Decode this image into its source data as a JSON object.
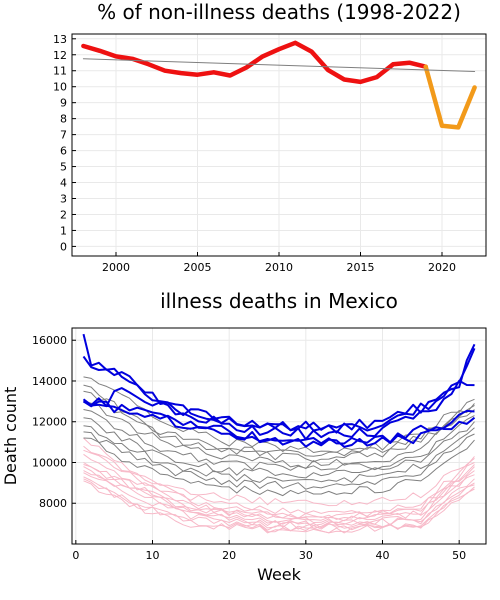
{
  "colors": {
    "pct_pre": "#ee1111",
    "pct_covid": "#f29a1a",
    "trend": "#7f7f7f",
    "blue": "#0000dd",
    "gray": "#808080",
    "pink": "#f7b9c8"
  },
  "chart_data": [
    {
      "type": "line",
      "title": "% of non-illness deaths (1998-2022)",
      "xlabel": "",
      "ylabel": "",
      "xlim": [
        1997.3,
        2022.7
      ],
      "ylim": [
        -0.6,
        13.3
      ],
      "x_ticks": [
        2000,
        2005,
        2010,
        2015,
        2020
      ],
      "y_ticks": [
        0,
        1,
        2,
        3,
        4,
        5,
        6,
        7,
        8,
        9,
        10,
        11,
        12,
        13
      ],
      "grid": true,
      "legend": "none",
      "series": [
        {
          "x": [
            1998,
            1999,
            2000,
            2001,
            2002,
            2003,
            2004,
            2005,
            2006,
            2007,
            2008,
            2009,
            2010,
            2011,
            2012,
            2013,
            2014,
            2015,
            2016,
            2017,
            2018,
            2019
          ],
          "y": [
            12.55,
            12.25,
            11.9,
            11.75,
            11.4,
            11.0,
            10.85,
            10.75,
            10.9,
            10.7,
            11.2,
            11.9,
            12.35,
            12.75,
            12.2,
            11.05,
            10.45,
            10.3,
            10.6,
            11.4,
            11.5,
            11.25
          ],
          "color": "pct_pre"
        },
        {
          "x": [
            2019,
            2020,
            2021,
            2022
          ],
          "y": [
            11.25,
            7.55,
            7.45,
            9.95
          ],
          "color": "pct_covid"
        },
        {
          "x": [
            1998,
            2022
          ],
          "y": [
            11.75,
            10.95
          ],
          "color": "trend"
        }
      ]
    },
    {
      "type": "line",
      "title": "illness deaths in Mexico",
      "xlabel": "Week",
      "ylabel": "Death count",
      "xlim": [
        -0.5,
        53.5
      ],
      "ylim": [
        6000,
        16600
      ],
      "x_ticks": [
        0,
        10,
        20,
        30,
        40,
        50
      ],
      "y_ticks": [
        8000,
        10000,
        12000,
        14000,
        16000
      ],
      "grid": true,
      "legend": "none",
      "series": [
        {
          "color": "pink",
          "anchors": [
            [
              1,
              11200
            ],
            [
              8,
              9400
            ],
            [
              15,
              8300
            ],
            [
              25,
              7700
            ],
            [
              35,
              7500
            ],
            [
              45,
              8000
            ],
            [
              52,
              10200
            ]
          ]
        },
        {
          "color": "pink",
          "anchors": [
            [
              1,
              10800
            ],
            [
              8,
              9200
            ],
            [
              15,
              8100
            ],
            [
              25,
              7500
            ],
            [
              35,
              7300
            ],
            [
              45,
              7800
            ],
            [
              52,
              10000
            ]
          ]
        },
        {
          "color": "pink",
          "anchors": [
            [
              1,
              10400
            ],
            [
              8,
              9000
            ],
            [
              15,
              7900
            ],
            [
              25,
              7300
            ],
            [
              35,
              7200
            ],
            [
              45,
              7700
            ],
            [
              52,
              9800
            ]
          ]
        },
        {
          "color": "pink",
          "anchors": [
            [
              1,
              10000
            ],
            [
              8,
              8800
            ],
            [
              15,
              7800
            ],
            [
              25,
              7200
            ],
            [
              35,
              7100
            ],
            [
              45,
              7500
            ],
            [
              52,
              9600
            ]
          ]
        },
        {
          "color": "pink",
          "anchors": [
            [
              1,
              9800
            ],
            [
              8,
              8600
            ],
            [
              15,
              7600
            ],
            [
              25,
              7100
            ],
            [
              35,
              7000
            ],
            [
              45,
              7300
            ],
            [
              52,
              9400
            ]
          ]
        },
        {
          "color": "pink",
          "anchors": [
            [
              1,
              9600
            ],
            [
              8,
              8400
            ],
            [
              15,
              7500
            ],
            [
              25,
              7000
            ],
            [
              35,
              6900
            ],
            [
              45,
              7200
            ],
            [
              52,
              9200
            ]
          ]
        },
        {
          "color": "pink",
          "anchors": [
            [
              1,
              9500
            ],
            [
              8,
              8200
            ],
            [
              15,
              7400
            ],
            [
              25,
              6900
            ],
            [
              35,
              6850
            ],
            [
              45,
              7100
            ],
            [
              52,
              9000
            ]
          ]
        },
        {
          "color": "pink",
          "anchors": [
            [
              1,
              9300
            ],
            [
              8,
              8000
            ],
            [
              15,
              7200
            ],
            [
              25,
              6800
            ],
            [
              35,
              6800
            ],
            [
              45,
              7000
            ],
            [
              52,
              8900
            ]
          ]
        },
        {
          "color": "pink",
          "anchors": [
            [
              1,
              9200
            ],
            [
              8,
              7900
            ],
            [
              15,
              7100
            ],
            [
              25,
              6750
            ],
            [
              35,
              6700
            ],
            [
              45,
              6950
            ],
            [
              52,
              8800
            ]
          ]
        },
        {
          "color": "pink",
          "anchors": [
            [
              1,
              9100
            ],
            [
              8,
              7800
            ],
            [
              15,
              7000
            ],
            [
              25,
              6700
            ],
            [
              35,
              6700
            ],
            [
              45,
              6900
            ],
            [
              52,
              8700
            ]
          ]
        },
        {
          "color": "pink",
          "anchors": [
            [
              1,
              10600
            ],
            [
              8,
              9300
            ],
            [
              15,
              8500
            ],
            [
              25,
              8100
            ],
            [
              35,
              8000
            ],
            [
              45,
              8400
            ],
            [
              52,
              10300
            ]
          ]
        },
        {
          "color": "pink",
          "anchors": [
            [
              1,
              9900
            ],
            [
              8,
              8700
            ],
            [
              15,
              7700
            ],
            [
              25,
              7400
            ],
            [
              35,
              7400
            ],
            [
              45,
              7600
            ],
            [
              52,
              9900
            ]
          ]
        },
        {
          "color": "gray",
          "anchors": [
            [
              1,
              14200
            ],
            [
              5,
              13600
            ],
            [
              12,
              11800
            ],
            [
              20,
              11000
            ],
            [
              30,
              10600
            ],
            [
              40,
              10800
            ],
            [
              46,
              11700
            ],
            [
              52,
              13100
            ]
          ]
        },
        {
          "color": "gray",
          "anchors": [
            [
              1,
              13500
            ],
            [
              5,
              12800
            ],
            [
              12,
              11200
            ],
            [
              20,
              10500
            ],
            [
              30,
              10200
            ],
            [
              40,
              10400
            ],
            [
              46,
              11300
            ],
            [
              52,
              12900
            ]
          ]
        },
        {
          "color": "gray",
          "anchors": [
            [
              1,
              13000
            ],
            [
              5,
              12200
            ],
            [
              12,
              10900
            ],
            [
              20,
              10200
            ],
            [
              30,
              9900
            ],
            [
              40,
              10100
            ],
            [
              46,
              11000
            ],
            [
              52,
              12600
            ]
          ]
        },
        {
          "color": "gray",
          "anchors": [
            [
              1,
              12600
            ],
            [
              5,
              11800
            ],
            [
              12,
              10500
            ],
            [
              20,
              9900
            ],
            [
              30,
              9700
            ],
            [
              40,
              9800
            ],
            [
              46,
              10600
            ],
            [
              52,
              12300
            ]
          ]
        },
        {
          "color": "gray",
          "anchors": [
            [
              1,
              12200
            ],
            [
              5,
              11400
            ],
            [
              12,
              10200
            ],
            [
              20,
              9600
            ],
            [
              30,
              9400
            ],
            [
              40,
              9600
            ],
            [
              46,
              10300
            ],
            [
              52,
              12000
            ]
          ]
        },
        {
          "color": "gray",
          "anchors": [
            [
              1,
              11800
            ],
            [
              5,
              11000
            ],
            [
              12,
              9900
            ],
            [
              20,
              9300
            ],
            [
              30,
              9100
            ],
            [
              40,
              9300
            ],
            [
              46,
              10000
            ],
            [
              52,
              11700
            ]
          ]
        },
        {
          "color": "gray",
          "anchors": [
            [
              1,
              11500
            ],
            [
              5,
              10700
            ],
            [
              12,
              9600
            ],
            [
              20,
              9000
            ],
            [
              30,
              8800
            ],
            [
              40,
              9000
            ],
            [
              46,
              9700
            ],
            [
              52,
              11400
            ]
          ]
        },
        {
          "color": "gray",
          "anchors": [
            [
              1,
              11200
            ],
            [
              5,
              10400
            ],
            [
              12,
              9300
            ],
            [
              20,
              8700
            ],
            [
              30,
              8500
            ],
            [
              40,
              8700
            ],
            [
              46,
              9400
            ],
            [
              52,
              11100
            ]
          ]
        },
        {
          "color": "gray",
          "anchors": [
            [
              1,
              13800
            ],
            [
              5,
              12600
            ],
            [
              12,
              11400
            ],
            [
              20,
              10600
            ],
            [
              30,
              10400
            ],
            [
              40,
              10600
            ],
            [
              46,
              11500
            ],
            [
              52,
              12800
            ]
          ]
        },
        {
          "color": "blue",
          "anchors": [
            [
              1,
              16300
            ],
            [
              2,
              15000
            ],
            [
              4,
              14700
            ],
            [
              6,
              14300
            ],
            [
              10,
              13100
            ],
            [
              15,
              12400
            ],
            [
              25,
              11900
            ],
            [
              35,
              11700
            ],
            [
              40,
              12100
            ],
            [
              45,
              12700
            ],
            [
              50,
              13900
            ],
            [
              52,
              15800
            ]
          ]
        },
        {
          "color": "blue",
          "anchors": [
            [
              1,
              15200
            ],
            [
              3,
              14600
            ],
            [
              5,
              14400
            ],
            [
              8,
              13800
            ],
            [
              12,
              12800
            ],
            [
              20,
              12100
            ],
            [
              30,
              11700
            ],
            [
              40,
              11800
            ],
            [
              46,
              12800
            ],
            [
              50,
              14200
            ],
            [
              52,
              15600
            ]
          ]
        },
        {
          "color": "blue",
          "anchors": [
            [
              1,
              13000
            ],
            [
              4,
              13000
            ],
            [
              6,
              13600
            ],
            [
              10,
              13000
            ],
            [
              15,
              12200
            ],
            [
              25,
              11500
            ],
            [
              35,
              11300
            ],
            [
              40,
              11600
            ],
            [
              46,
              12400
            ],
            [
              50,
              13800
            ],
            [
              52,
              13800
            ]
          ]
        },
        {
          "color": "blue",
          "anchors": [
            [
              1,
              13100
            ],
            [
              4,
              12800
            ],
            [
              8,
              12600
            ],
            [
              15,
              11800
            ],
            [
              25,
              11200
            ],
            [
              35,
              11000
            ],
            [
              42,
              11200
            ],
            [
              47,
              11800
            ],
            [
              50,
              12200
            ],
            [
              52,
              12500
            ]
          ]
        },
        {
          "color": "blue",
          "anchors": [
            [
              1,
              13000
            ],
            [
              5,
              12700
            ],
            [
              10,
              12300
            ],
            [
              18,
              11500
            ],
            [
              28,
              11000
            ],
            [
              38,
              10900
            ],
            [
              45,
              11200
            ],
            [
              50,
              11900
            ],
            [
              52,
              12200
            ]
          ]
        }
      ]
    }
  ]
}
